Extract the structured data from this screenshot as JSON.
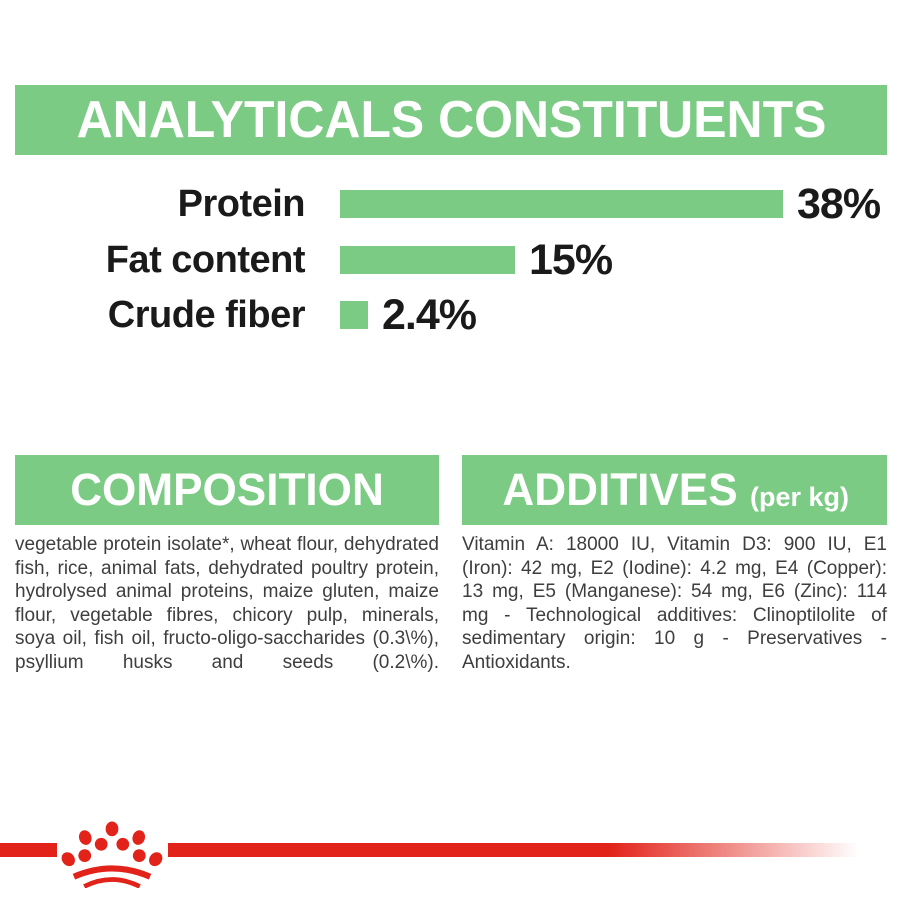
{
  "colors": {
    "green": "#7CCB84",
    "red": "#E2231A",
    "ink": "#1A1A1A",
    "body_text": "#3E3E3E"
  },
  "header": {
    "title": "ANALYTICALS CONSTITUENTS"
  },
  "chart_data": {
    "type": "bar",
    "orientation": "horizontal",
    "title": "ANALYTICALS CONSTITUENTS",
    "categories": [
      "Protein",
      "Fat content",
      "Crude fiber"
    ],
    "values": [
      38,
      15,
      2.4
    ],
    "value_labels": [
      "38%",
      "15%",
      "2.4%"
    ],
    "unit": "%",
    "xlim": [
      0,
      38
    ],
    "bar_color": "#7CCB84",
    "grid": false,
    "legend": false
  },
  "composition": {
    "title": "COMPOSITION",
    "body": "vegetable protein isolate*, wheat flour, dehydrated fish, rice, animal fats, dehydrated poultry protein, hydrolysed animal proteins, maize gluten, maize flour, vegetable fibres, chicory pulp, minerals, soya oil, fish oil, fructo-oligo-saccharides (0.3\\%), psyllium husks and seeds (0.2\\%)."
  },
  "additives": {
    "title": "ADDITIVES",
    "subtitle": "(per kg)",
    "body": "Vitamin A: 18000 IU, Vitamin D3: 900 IU, E1 (Iron): 42 mg, E2 (Iodine): 4.2 mg, E4 (Copper): 13 mg, E5 (Manganese): 54 mg, E6 (Zinc): 114 mg - Technological additives: Clinoptilolite of sedimentary origin: 10 g - Preservatives - Antioxidants."
  },
  "footer": {
    "logo": "royal-canin-crown"
  }
}
